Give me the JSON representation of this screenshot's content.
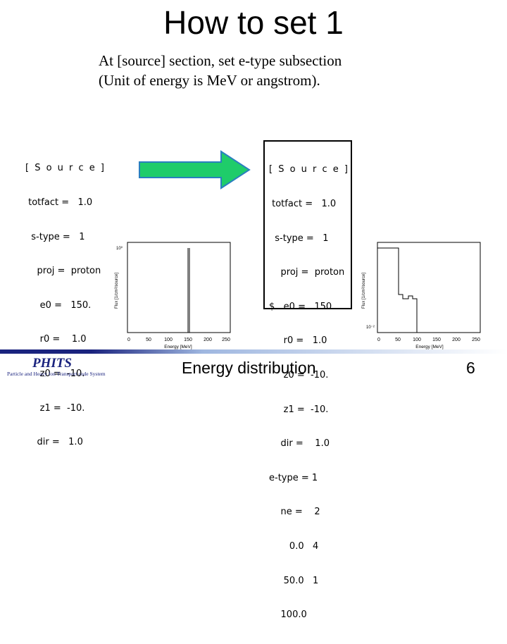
{
  "title": "How to set 1",
  "subtitle_lines": [
    "At [source] section, set e-type subsection",
    "(Unit of energy is MeV or angstrom)."
  ],
  "left_code": [
    "[ S o u r c e ]",
    " totfact =   1.0",
    "  s-type =   1",
    "    proj =  proton",
    "     e0 =   150.",
    "     r0 =    1.0",
    "     z0 =  -10.",
    "     z1 =  -10.",
    "    dir =   1.0"
  ],
  "right_code": [
    "[ S o u r c e ]",
    " totfact =   1.0",
    "  s-type =   1",
    "    proj =  proton",
    "$   e0 =   150.",
    "     r0 =   1.0",
    "     z0 =  -10.",
    "     z1 =  -10.",
    "    dir =    1.0",
    "e-type = 1",
    "    ne =    2",
    "       0.0   4",
    "     50.0   1",
    "    100.0"
  ],
  "plot_left": {
    "ylabel": "Flux [1/cm²/source]",
    "xlabel": "Energy [MeV]",
    "xticks": [
      "0",
      "50",
      "100",
      "150",
      "200",
      "250"
    ],
    "ytick_top": "10⁰"
  },
  "plot_right": {
    "ylabel": "Flux [1/cm²/source]",
    "xlabel": "Energy [MeV]",
    "xticks": [
      "0",
      "50",
      "100",
      "150",
      "200",
      "250"
    ],
    "ytick_low": "10⁻²"
  },
  "logo": {
    "name": "PHITS",
    "tagline": "Particle and Heavy Ion Transport code System"
  },
  "caption": "Energy distribution",
  "page_number": "6",
  "colors": {
    "arrow_fill": "#1fcc6a",
    "arrow_stroke": "#2a7fbf",
    "footer_dark": "#1a237e",
    "footer_light": "#9fb7e0"
  }
}
